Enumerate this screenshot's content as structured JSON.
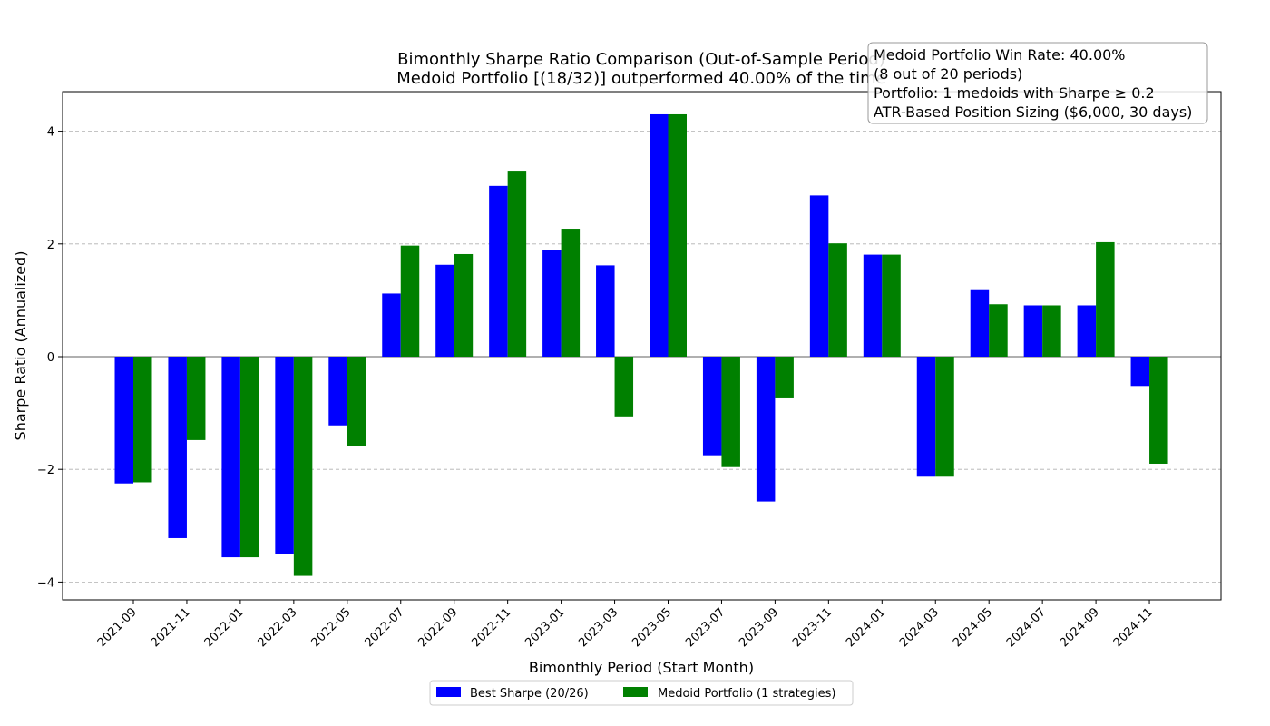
{
  "chart_data": {
    "type": "bar",
    "title": "Bimonthly Sharpe Ratio Comparison (Out-of-Sample Period)",
    "subtitle": "Medoid Portfolio [(18/32)] outperformed 40.00% of the time",
    "xlabel": "Bimonthly Period (Start Month)",
    "ylabel": "Sharpe Ratio (Annualized)",
    "ylim": [
      -4.3,
      4.7
    ],
    "yticks": [
      -4,
      -2,
      0,
      2,
      4
    ],
    "grid": "y, dashed",
    "legend_position": "bottom-center",
    "categories": [
      "2021-09",
      "2021-11",
      "2022-01",
      "2022-03",
      "2022-05",
      "2022-07",
      "2022-09",
      "2022-11",
      "2023-01",
      "2023-03",
      "2023-05",
      "2023-07",
      "2023-09",
      "2023-11",
      "2024-01",
      "2024-03",
      "2024-05",
      "2024-07",
      "2024-09",
      "2024-11"
    ],
    "series": [
      {
        "name": "Best Sharpe (20/26)",
        "color": "#0000ff",
        "values": [
          -2.25,
          -3.22,
          -3.56,
          -3.51,
          -1.22,
          1.12,
          1.63,
          3.03,
          1.89,
          1.62,
          4.3,
          -1.75,
          -2.57,
          2.86,
          1.81,
          -2.13,
          1.18,
          0.91,
          0.91,
          -0.52
        ]
      },
      {
        "name": "Medoid Portfolio (1 strategies)",
        "color": "#008000",
        "values": [
          -2.23,
          -1.48,
          -3.56,
          -3.89,
          -1.59,
          1.97,
          1.82,
          3.3,
          2.27,
          -1.06,
          4.3,
          -1.96,
          -0.74,
          2.01,
          1.81,
          -2.13,
          0.93,
          0.91,
          2.03,
          -1.9
        ]
      }
    ],
    "annotation": {
      "lines": [
        "Medoid Portfolio Win Rate: 40.00%",
        "(8 out of 20 periods)",
        "Portfolio: 1 medoids with Sharpe ≥ 0.2",
        "ATR-Based Position Sizing ($6,000, 30 days)"
      ]
    }
  }
}
